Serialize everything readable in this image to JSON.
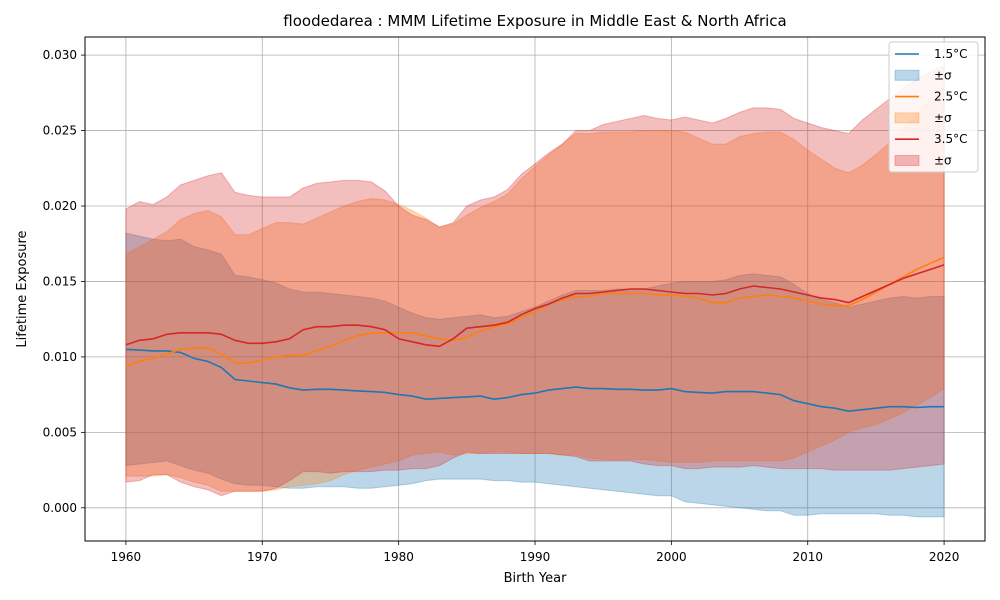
{
  "chart_data": {
    "type": "line",
    "title": "floodedarea : MMM Lifetime Exposure in Middle East & North Africa",
    "xlabel": "Birth Year",
    "ylabel": "Lifetime Exposure",
    "xlim": [
      1957,
      2023
    ],
    "ylim": [
      -0.0022,
      0.0312
    ],
    "xticks": [
      1960,
      1970,
      1980,
      1990,
      2000,
      2010,
      2020
    ],
    "yticks": [
      0.0,
      0.005,
      0.01,
      0.015,
      0.02,
      0.025,
      0.03
    ],
    "ytick_labels": [
      "0.000",
      "0.005",
      "0.010",
      "0.015",
      "0.020",
      "0.025",
      "0.030"
    ],
    "grid": true,
    "legend_position": "top-right",
    "x": [
      1960,
      1961,
      1962,
      1963,
      1964,
      1965,
      1966,
      1967,
      1968,
      1969,
      1970,
      1971,
      1972,
      1973,
      1974,
      1975,
      1976,
      1977,
      1978,
      1979,
      1980,
      1981,
      1982,
      1983,
      1984,
      1985,
      1986,
      1987,
      1988,
      1989,
      1990,
      1991,
      1992,
      1993,
      1994,
      1995,
      1996,
      1997,
      1998,
      1999,
      2000,
      2001,
      2002,
      2003,
      2004,
      2005,
      2006,
      2007,
      2008,
      2009,
      2010,
      2011,
      2012,
      2013,
      2014,
      2015,
      2016,
      2017,
      2018,
      2019,
      2020
    ],
    "series": [
      {
        "name": "1.5°C",
        "band_name": "±σ",
        "color": "#1f77b4",
        "band_color": "#1f77b4",
        "mean": [
          0.0105,
          0.01045,
          0.0104,
          0.0104,
          0.0103,
          0.0099,
          0.0097,
          0.0093,
          0.0085,
          0.0084,
          0.0083,
          0.0082,
          0.00795,
          0.0078,
          0.00785,
          0.00785,
          0.0078,
          0.00775,
          0.0077,
          0.00765,
          0.0075,
          0.0074,
          0.0072,
          0.00725,
          0.0073,
          0.00735,
          0.0074,
          0.0072,
          0.0073,
          0.0075,
          0.0076,
          0.0078,
          0.0079,
          0.008,
          0.0079,
          0.0079,
          0.00785,
          0.00785,
          0.0078,
          0.0078,
          0.0079,
          0.0077,
          0.00765,
          0.0076,
          0.0077,
          0.0077,
          0.0077,
          0.0076,
          0.0075,
          0.0071,
          0.0069,
          0.0067,
          0.0066,
          0.0064,
          0.0065,
          0.0066,
          0.0067,
          0.0067,
          0.00665,
          0.0067,
          0.0067
        ],
        "upper": [
          0.0182,
          0.018,
          0.0178,
          0.0177,
          0.0178,
          0.0173,
          0.0171,
          0.0168,
          0.0154,
          0.0153,
          0.0151,
          0.0149,
          0.0145,
          0.0143,
          0.0143,
          0.0142,
          0.0141,
          0.014,
          0.0139,
          0.0137,
          0.0133,
          0.0129,
          0.0126,
          0.0125,
          0.0126,
          0.0127,
          0.0128,
          0.0126,
          0.0127,
          0.013,
          0.0133,
          0.0137,
          0.0141,
          0.0144,
          0.0144,
          0.0144,
          0.0145,
          0.0145,
          0.0145,
          0.0147,
          0.0149,
          0.015,
          0.015,
          0.015,
          0.0151,
          0.0154,
          0.0155,
          0.0154,
          0.0153,
          0.0148,
          0.0142,
          0.0138,
          0.0136,
          0.0133,
          0.0135,
          0.0137,
          0.0139,
          0.014,
          0.0139,
          0.014,
          0.014
        ],
        "lower": [
          0.0028,
          0.0029,
          0.003,
          0.0031,
          0.0028,
          0.0025,
          0.0023,
          0.0019,
          0.0016,
          0.0015,
          0.0015,
          0.0014,
          0.0013,
          0.0013,
          0.0014,
          0.0014,
          0.0014,
          0.0013,
          0.0013,
          0.0014,
          0.0015,
          0.0016,
          0.0018,
          0.0019,
          0.0019,
          0.0019,
          0.0019,
          0.0018,
          0.0018,
          0.0017,
          0.0017,
          0.0016,
          0.0015,
          0.0014,
          0.0013,
          0.0012,
          0.0011,
          0.001,
          0.0009,
          0.0008,
          0.0008,
          0.0004,
          0.0003,
          0.0002,
          0.0001,
          0.0,
          -0.0001,
          -0.0002,
          -0.0002,
          -0.0005,
          -0.0005,
          -0.0004,
          -0.0004,
          -0.0004,
          -0.0004,
          -0.0004,
          -0.0005,
          -0.0005,
          -0.0006,
          -0.0006,
          -0.0006
        ]
      },
      {
        "name": "2.5°C",
        "band_name": "±σ",
        "color": "#ff7f0e",
        "band_color": "#ff7f0e",
        "mean": [
          0.0094,
          0.0097,
          0.0099,
          0.0102,
          0.0105,
          0.0106,
          0.0106,
          0.0102,
          0.0096,
          0.0096,
          0.0098,
          0.01,
          0.0101,
          0.0101,
          0.0104,
          0.0107,
          0.0111,
          0.0114,
          0.0116,
          0.0116,
          0.0116,
          0.0116,
          0.0114,
          0.0112,
          0.0111,
          0.0113,
          0.0117,
          0.012,
          0.0122,
          0.0126,
          0.013,
          0.0135,
          0.0138,
          0.014,
          0.014,
          0.0142,
          0.0142,
          0.0142,
          0.0142,
          0.0141,
          0.0141,
          0.014,
          0.0139,
          0.0136,
          0.0136,
          0.0139,
          0.014,
          0.0141,
          0.014,
          0.0139,
          0.0137,
          0.0135,
          0.0134,
          0.0134,
          0.0138,
          0.0143,
          0.0148,
          0.0153,
          0.0158,
          0.0162,
          0.0166
        ],
        "upper": [
          0.0168,
          0.0173,
          0.0178,
          0.0183,
          0.0191,
          0.0195,
          0.0197,
          0.0193,
          0.0181,
          0.0181,
          0.0185,
          0.0189,
          0.0189,
          0.0188,
          0.0192,
          0.0196,
          0.02,
          0.0203,
          0.0205,
          0.0204,
          0.0201,
          0.0197,
          0.0192,
          0.0186,
          0.0188,
          0.0194,
          0.0199,
          0.0203,
          0.0208,
          0.0218,
          0.0226,
          0.0234,
          0.0241,
          0.0248,
          0.0248,
          0.0249,
          0.0249,
          0.0249,
          0.025,
          0.025,
          0.025,
          0.0249,
          0.0245,
          0.0241,
          0.0241,
          0.0246,
          0.0248,
          0.0249,
          0.0249,
          0.0244,
          0.0237,
          0.0231,
          0.0225,
          0.0222,
          0.0227,
          0.0234,
          0.0242,
          0.0252,
          0.0262,
          0.027,
          0.0279
        ],
        "lower": [
          0.0021,
          0.0021,
          0.0021,
          0.0022,
          0.002,
          0.0017,
          0.0015,
          0.0011,
          0.0011,
          0.0011,
          0.0011,
          0.0012,
          0.0014,
          0.0015,
          0.0016,
          0.0018,
          0.0022,
          0.0025,
          0.0027,
          0.0029,
          0.0031,
          0.0035,
          0.0036,
          0.0037,
          0.0035,
          0.0036,
          0.0036,
          0.0037,
          0.0037,
          0.0036,
          0.0036,
          0.0036,
          0.0035,
          0.0035,
          0.0033,
          0.0032,
          0.0032,
          0.0032,
          0.0032,
          0.0031,
          0.003,
          0.003,
          0.003,
          0.0031,
          0.0031,
          0.0031,
          0.0031,
          0.0031,
          0.0031,
          0.0033,
          0.0037,
          0.0041,
          0.0045,
          0.005,
          0.0053,
          0.0055,
          0.0059,
          0.0063,
          0.0068,
          0.0073,
          0.0079
        ]
      },
      {
        "name": "3.5°C",
        "band_name": "±σ",
        "color": "#d62728",
        "band_color": "#d62728",
        "mean": [
          0.0108,
          0.0111,
          0.0112,
          0.0115,
          0.0116,
          0.0116,
          0.0116,
          0.0115,
          0.0111,
          0.0109,
          0.0109,
          0.011,
          0.0112,
          0.0118,
          0.012,
          0.012,
          0.0121,
          0.0121,
          0.012,
          0.0118,
          0.0112,
          0.011,
          0.0108,
          0.0107,
          0.0112,
          0.0119,
          0.012,
          0.0121,
          0.0123,
          0.0128,
          0.0132,
          0.0135,
          0.0139,
          0.0142,
          0.0142,
          0.0143,
          0.0144,
          0.0145,
          0.0145,
          0.0144,
          0.0143,
          0.0142,
          0.0142,
          0.0141,
          0.0142,
          0.0145,
          0.0147,
          0.0146,
          0.0145,
          0.0143,
          0.0141,
          0.0139,
          0.0138,
          0.0136,
          0.014,
          0.0144,
          0.0148,
          0.0152,
          0.0155,
          0.0158,
          0.0161
        ],
        "upper": [
          0.0198,
          0.0203,
          0.0201,
          0.0206,
          0.0214,
          0.0217,
          0.022,
          0.0222,
          0.0209,
          0.0207,
          0.0206,
          0.0206,
          0.0206,
          0.0212,
          0.0215,
          0.0216,
          0.0217,
          0.0217,
          0.0216,
          0.021,
          0.02,
          0.0194,
          0.0191,
          0.0186,
          0.0189,
          0.02,
          0.0204,
          0.0206,
          0.0211,
          0.0221,
          0.0228,
          0.0235,
          0.0241,
          0.025,
          0.025,
          0.0254,
          0.0256,
          0.0258,
          0.026,
          0.0258,
          0.0257,
          0.0259,
          0.0257,
          0.0255,
          0.0258,
          0.0262,
          0.0265,
          0.0265,
          0.0264,
          0.0258,
          0.0255,
          0.0252,
          0.025,
          0.0248,
          0.0257,
          0.0264,
          0.0271,
          0.0278,
          0.0284,
          0.0289,
          0.0293
        ],
        "lower": [
          0.0017,
          0.0018,
          0.0022,
          0.0022,
          0.0017,
          0.0014,
          0.0012,
          0.0008,
          0.0011,
          0.0011,
          0.0011,
          0.0013,
          0.0018,
          0.0024,
          0.0024,
          0.0023,
          0.0024,
          0.0024,
          0.0024,
          0.0025,
          0.0025,
          0.0026,
          0.0026,
          0.0028,
          0.0033,
          0.0037,
          0.0036,
          0.0036,
          0.0036,
          0.0036,
          0.0036,
          0.0036,
          0.0035,
          0.0034,
          0.0031,
          0.0031,
          0.0031,
          0.0031,
          0.0029,
          0.0028,
          0.0028,
          0.0026,
          0.0026,
          0.0027,
          0.0027,
          0.0027,
          0.0028,
          0.0027,
          0.0026,
          0.0026,
          0.0026,
          0.0026,
          0.0025,
          0.0025,
          0.0025,
          0.0025,
          0.0025,
          0.0026,
          0.0027,
          0.0028,
          0.0029
        ]
      }
    ]
  }
}
